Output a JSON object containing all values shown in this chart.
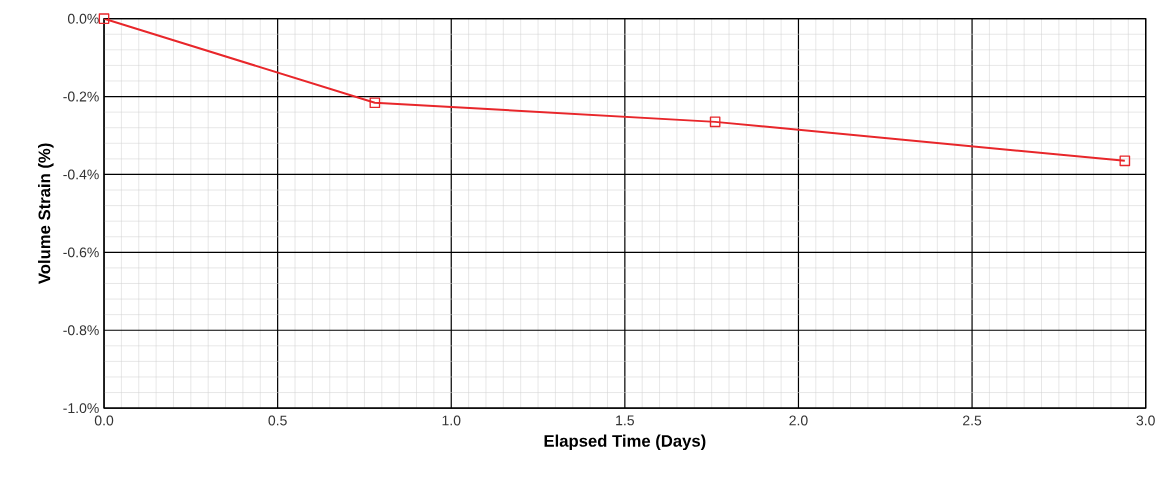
{
  "chart_data": {
    "type": "line",
    "xlabel": "Elapsed Time (Days)",
    "ylabel": "Volume Strain (%)",
    "x": [
      0,
      0.78,
      1.76,
      2.94
    ],
    "series": [
      {
        "color": "#e8262a",
        "values": [
          0,
          -0.216,
          -0.265,
          -0.365
        ]
      }
    ],
    "xlim": [
      0,
      3
    ],
    "ylim": [
      -1.0,
      0
    ],
    "xticks": [
      {
        "value": 0,
        "label": "0.0"
      },
      {
        "value": 0.5,
        "label": "0.5"
      },
      {
        "value": 1,
        "label": "1.0"
      },
      {
        "value": 1.5,
        "label": "1.5"
      },
      {
        "value": 2,
        "label": "2.0"
      },
      {
        "value": 2.5,
        "label": "2.5"
      },
      {
        "value": 3,
        "label": "3.0"
      }
    ],
    "yticks": [
      {
        "value": -1.0,
        "label": "-1.0%"
      },
      {
        "value": -0.8,
        "label": "-0.8%"
      },
      {
        "value": -0.6,
        "label": "-0.6%"
      },
      {
        "value": -0.4,
        "label": "-0.4%"
      },
      {
        "value": -0.2,
        "label": "-0.2%"
      },
      {
        "value": 0,
        "label": "0.0%"
      }
    ],
    "grid": true,
    "marker": "square",
    "line_style": "solid"
  }
}
